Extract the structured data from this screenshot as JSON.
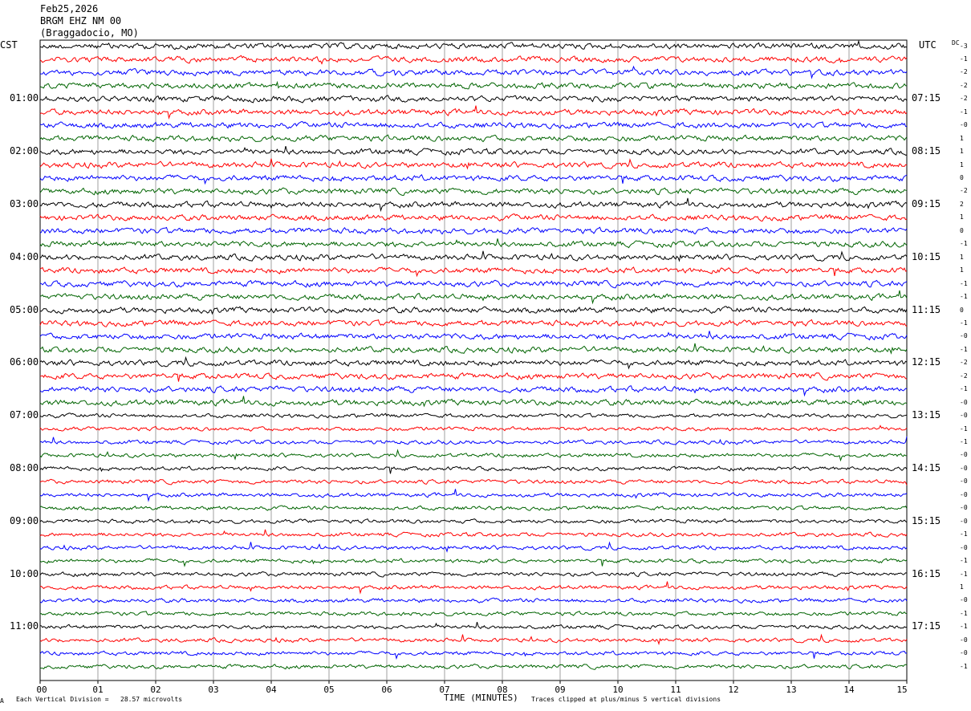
{
  "header": {
    "date": "Feb25,2026",
    "station": "BRGM EHZ NM 00",
    "location": "(Braggadocio, MO)"
  },
  "left_tz": "CST",
  "right_tz": "UTC",
  "dc_label": "DC",
  "footer": {
    "scale": "Each Vertical Division =   28.57 microvolts",
    "xlabel": "TIME (MINUTES)",
    "clip_note": "Traces clipped at plus/minus 5 vertical divisions",
    "corner_mark": "A"
  },
  "chart_data": {
    "type": "line",
    "title": "BRGM EHZ NM 00",
    "xlabel": "TIME (MINUTES)",
    "xlim": [
      0,
      15
    ],
    "x_ticks": [
      "00",
      "01",
      "02",
      "03",
      "04",
      "05",
      "06",
      "07",
      "08",
      "09",
      "10",
      "11",
      "12",
      "13",
      "14",
      "15"
    ],
    "trace_count": 48,
    "trace_minutes": 15,
    "trace_colors": [
      "#000000",
      "#ff0000",
      "#0000ff",
      "#006400"
    ],
    "left_hour_labels": [
      "01:00",
      "02:00",
      "03:00",
      "04:00",
      "05:00",
      "06:00",
      "07:00",
      "08:00",
      "09:00",
      "10:00",
      "11:00"
    ],
    "right_hour_labels": [
      "07:15",
      "08:15",
      "09:15",
      "10:15",
      "11:15",
      "12:15",
      "13:15",
      "14:15",
      "15:15",
      "16:15",
      "17:15"
    ],
    "dc_offsets": [
      "-3",
      "-1",
      "-2",
      "-2",
      "-2",
      "-1",
      "-0",
      "1",
      "1",
      "1",
      "0",
      "-2",
      "2",
      "1",
      "0",
      "-1",
      "1",
      "1",
      "-1",
      "-1",
      "0",
      "-1",
      "-0",
      "-1",
      "-2",
      "-2",
      "-1",
      "-0",
      "-0",
      "-1",
      "-1",
      "-0",
      "-0",
      "-0",
      "-0",
      "-0",
      "-0",
      "-1",
      "-0",
      "-1",
      "-1",
      "1",
      "-0",
      "-1",
      "-1",
      "-0",
      "-0",
      "-1"
    ]
  }
}
